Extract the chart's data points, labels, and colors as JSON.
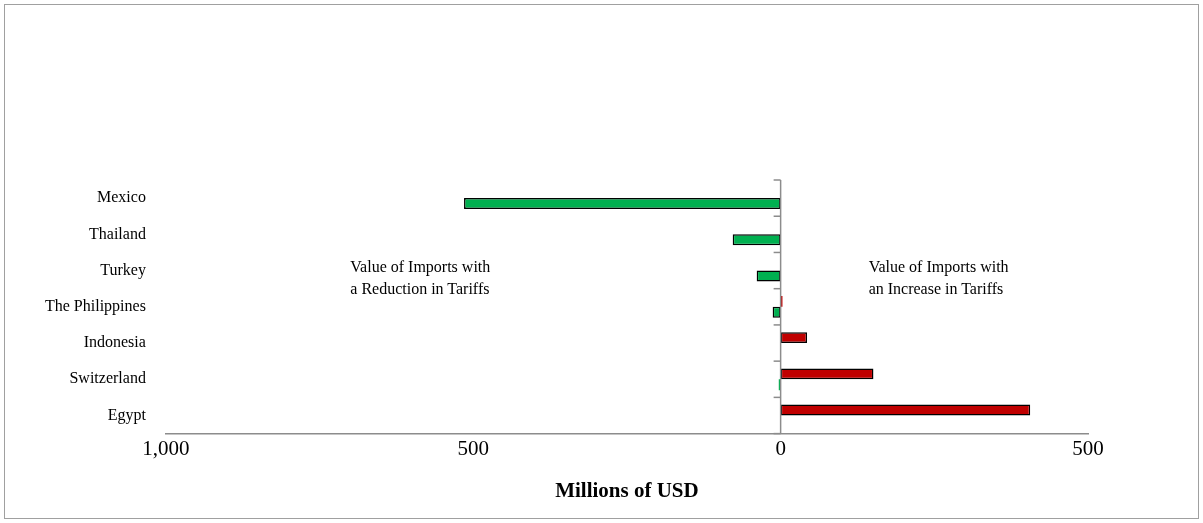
{
  "chart_data": {
    "type": "bar",
    "orientation": "horizontal",
    "xlabel": "Millions of USD",
    "categories": [
      "Mexico",
      "Thailand",
      "Turkey",
      "The Philippines",
      "Indonesia",
      "Switzerland",
      "Egypt"
    ],
    "series": [
      {
        "color": "#c00000",
        "values": [
          null,
          null,
          null,
          3,
          43,
          151,
          406
        ]
      },
      {
        "color": "#00b050",
        "values": [
          -515,
          -78,
          -39,
          -13,
          null,
          -3,
          null
        ]
      }
    ],
    "xlim": [
      -1000,
      500
    ],
    "xticks": [
      {
        "value": -1000,
        "label": "1,000"
      },
      {
        "value": -500,
        "label": "500"
      },
      0,
      500
    ],
    "annotations": [
      "Value of Imports with a Reduction in Tariffs",
      "Value of Imports with an Increase in Tariffs"
    ],
    "legend": false
  }
}
